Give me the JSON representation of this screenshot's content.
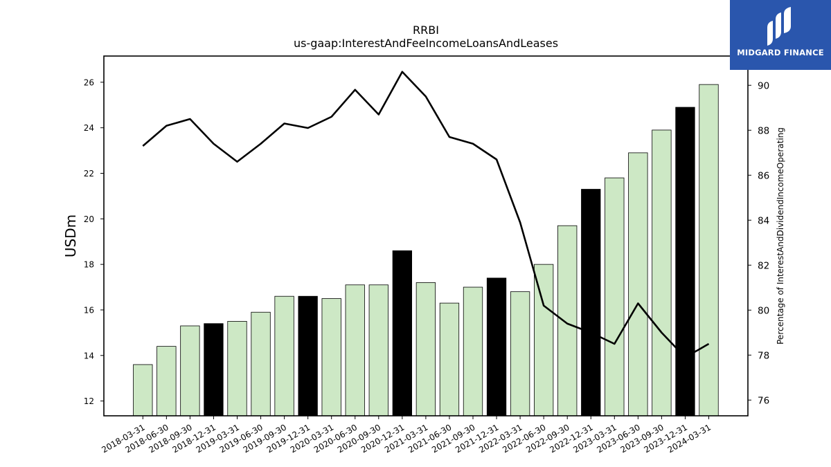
{
  "brand": {
    "name": "MIDGARD FINANCE",
    "logo_icon": "midgard-m-logo-icon",
    "bg_color": "#2a56ad"
  },
  "chart_data": {
    "type": "bar+line",
    "title": "RRBI",
    "subtitle": "us-gaap:InterestAndFeeIncomeLoansAndLeases",
    "ylabel": "USDm",
    "y2label": "Percentage of InterestAndDividendIncomeOperating",
    "ylim": [
      11.35,
      27.15
    ],
    "y2lim": [
      75.3,
      91.3
    ],
    "yticks": [
      12,
      14,
      16,
      18,
      20,
      22,
      24,
      26
    ],
    "y2ticks": [
      76,
      78,
      80,
      82,
      84,
      86,
      88,
      90
    ],
    "grid": false,
    "colors": {
      "bar": "#cde8c5",
      "bar_q4": "#000000",
      "line": "#000000",
      "edge": "#000000"
    },
    "categories": [
      "2018-03-31",
      "2018-06-30",
      "2018-09-30",
      "2018-12-31",
      "2019-03-31",
      "2019-06-30",
      "2019-09-30",
      "2019-12-31",
      "2020-03-31",
      "2020-06-30",
      "2020-09-30",
      "2020-12-31",
      "2021-03-31",
      "2021-06-30",
      "2021-09-30",
      "2021-12-31",
      "2022-03-31",
      "2022-06-30",
      "2022-09-30",
      "2022-12-31",
      "2023-03-31",
      "2023-06-30",
      "2023-09-30",
      "2023-12-31",
      "2024-03-31"
    ],
    "bars": [
      13.6,
      14.4,
      15.3,
      15.4,
      15.5,
      15.9,
      16.6,
      16.6,
      16.5,
      17.1,
      17.1,
      18.6,
      17.2,
      16.3,
      17.0,
      17.4,
      16.8,
      18.0,
      19.7,
      21.3,
      21.8,
      22.9,
      23.9,
      24.9,
      25.9
    ],
    "highlight": [
      false,
      false,
      false,
      true,
      false,
      false,
      false,
      true,
      false,
      false,
      false,
      true,
      false,
      false,
      false,
      true,
      false,
      false,
      false,
      true,
      false,
      false,
      false,
      true,
      false
    ],
    "line": [
      87.3,
      88.2,
      88.5,
      87.4,
      86.6,
      87.4,
      88.3,
      88.1,
      88.6,
      89.8,
      88.7,
      90.6,
      89.5,
      87.7,
      87.4,
      86.7,
      83.9,
      80.2,
      79.4,
      79.0,
      78.5,
      80.3,
      79.0,
      77.9,
      78.5
    ]
  }
}
